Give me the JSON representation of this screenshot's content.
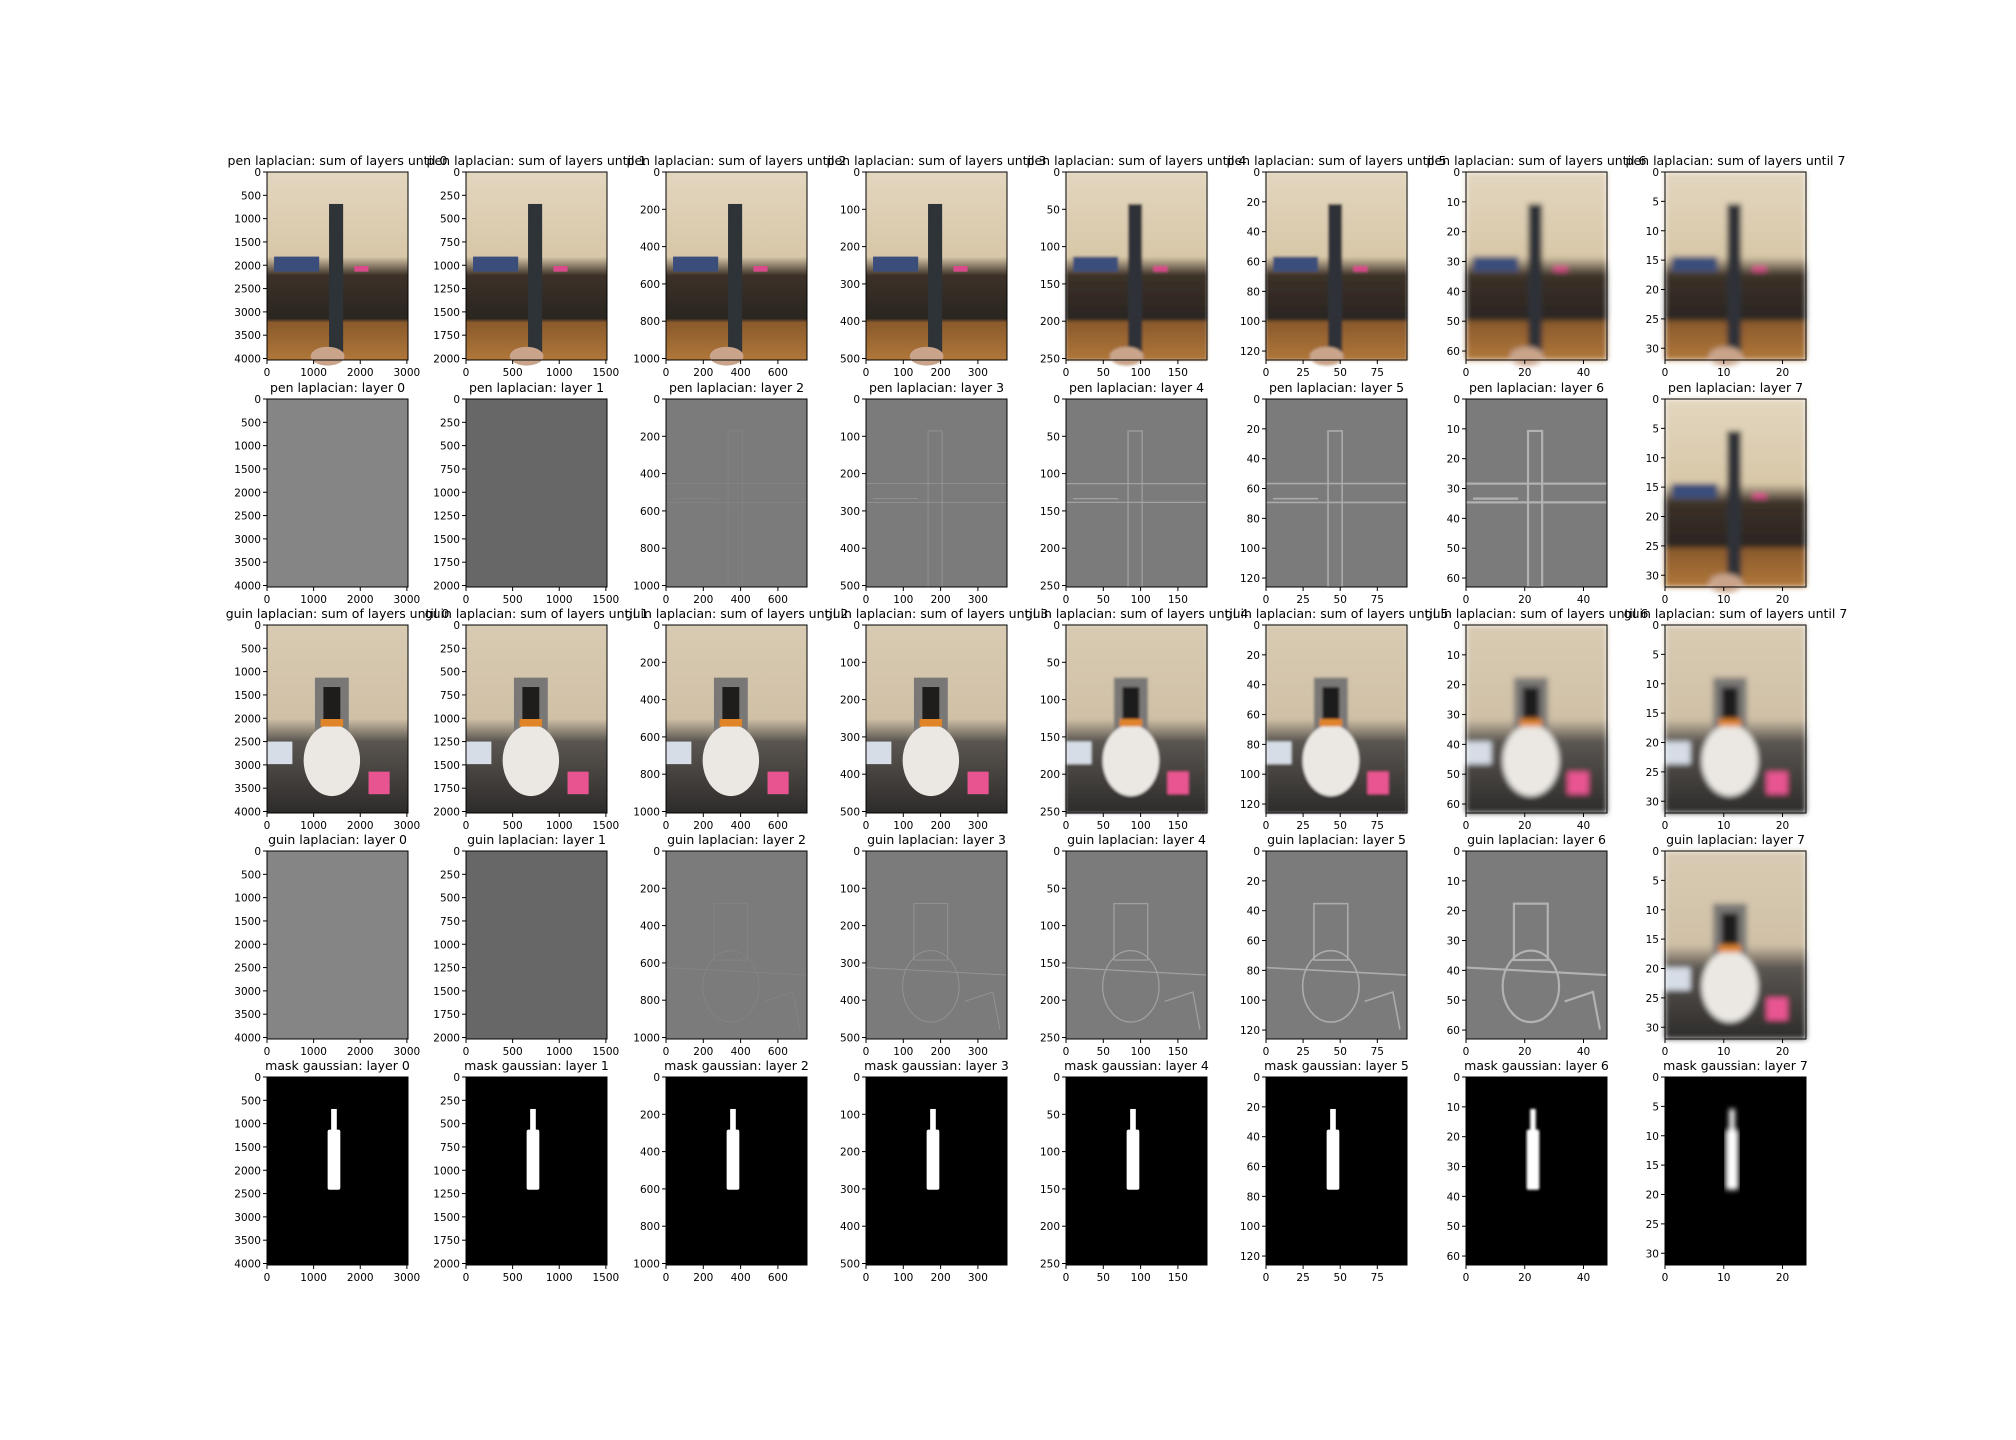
{
  "chart_data": {
    "type": "image_grid",
    "rows": [
      {
        "row_id": "pen-sum",
        "kind": "pen_sum",
        "titles": [
          "pen laplacian: sum of layers until 0",
          "pen laplacian: sum of layers until 1",
          "pen laplacian: sum of layers until 2",
          "pen laplacian: sum of layers until 3",
          "pen laplacian: sum of layers until 4",
          "pen laplacian: sum of layers until 5",
          "pen laplacian: sum of layers until 6",
          "pen laplacian: sum of layers until 7"
        ]
      },
      {
        "row_id": "pen-layer",
        "kind": "pen_layer",
        "titles": [
          "pen laplacian: layer 0",
          "pen laplacian: layer 1",
          "pen laplacian: layer 2",
          "pen laplacian: layer 3",
          "pen laplacian: layer 4",
          "pen laplacian: layer 5",
          "pen laplacian: layer 6",
          "pen laplacian: layer 7"
        ]
      },
      {
        "row_id": "guin-sum",
        "kind": "guin_sum",
        "titles": [
          "guin laplacian: sum of layers until 0",
          "guin laplacian: sum of layers until 1",
          "guin laplacian: sum of layers until 2",
          "guin laplacian: sum of layers until 3",
          "guin laplacian: sum of layers until 4",
          "guin laplacian: sum of layers until 5",
          "guin laplacian: sum of layers until 6",
          "guin laplacian: sum of layers until 7"
        ]
      },
      {
        "row_id": "guin-layer",
        "kind": "guin_layer",
        "titles": [
          "guin laplacian: layer 0",
          "guin laplacian: layer 1",
          "guin laplacian: layer 2",
          "guin laplacian: layer 3",
          "guin laplacian: layer 4",
          "guin laplacian: layer 5",
          "guin laplacian: layer 6",
          "guin laplacian: layer 7"
        ]
      },
      {
        "row_id": "mask-gaussian",
        "kind": "mask",
        "titles": [
          "mask gaussian: layer 0",
          "mask gaussian: layer 1",
          "mask gaussian: layer 2",
          "mask gaussian: layer 3",
          "mask gaussian: layer 4",
          "mask gaussian: layer 5",
          "mask gaussian: layer 6",
          "mask gaussian: layer 7"
        ]
      }
    ],
    "columns": [
      {
        "layer": 0,
        "width": 3024,
        "height": 4032,
        "xticks": [
          0,
          1000,
          2000,
          3000
        ],
        "yticks": [
          0,
          500,
          1000,
          1500,
          2000,
          2500,
          3000,
          3500,
          4000
        ]
      },
      {
        "layer": 1,
        "width": 1512,
        "height": 2016,
        "xticks": [
          0,
          500,
          1000,
          1500
        ],
        "yticks": [
          0,
          250,
          500,
          750,
          1000,
          1250,
          1500,
          1750,
          2000
        ]
      },
      {
        "layer": 2,
        "width": 756,
        "height": 1008,
        "xticks": [
          0,
          200,
          400,
          600
        ],
        "yticks": [
          0,
          200,
          400,
          600,
          800,
          1000
        ]
      },
      {
        "layer": 3,
        "width": 378,
        "height": 504,
        "xticks": [
          0,
          100,
          200,
          300
        ],
        "yticks": [
          0,
          100,
          200,
          300,
          400,
          500
        ]
      },
      {
        "layer": 4,
        "width": 189,
        "height": 252,
        "xticks": [
          0,
          50,
          100,
          150
        ],
        "yticks": [
          0,
          50,
          100,
          150,
          200,
          250
        ]
      },
      {
        "layer": 5,
        "width": 95,
        "height": 126,
        "xticks": [
          0,
          25,
          50,
          75
        ],
        "yticks": [
          0,
          20,
          40,
          60,
          80,
          100,
          120
        ]
      },
      {
        "layer": 6,
        "width": 48,
        "height": 63,
        "xticks": [
          0,
          20,
          40
        ],
        "yticks": [
          0,
          10,
          20,
          30,
          40,
          50,
          60
        ]
      },
      {
        "layer": 7,
        "width": 24,
        "height": 32,
        "xticks": [
          0,
          10,
          20
        ],
        "yticks": [
          0,
          5,
          10,
          15,
          20,
          25,
          30
        ]
      }
    ],
    "row_pen_sum_yticks_override": {
      "0": [
        0,
        500,
        1000,
        1500,
        2000,
        2500,
        3000,
        3500,
        4000
      ],
      "4": [
        0,
        50,
        100,
        150,
        200,
        250
      ],
      "5": [
        0,
        20,
        40,
        60,
        80,
        100,
        120
      ]
    },
    "grid": false,
    "legend": "none"
  }
}
